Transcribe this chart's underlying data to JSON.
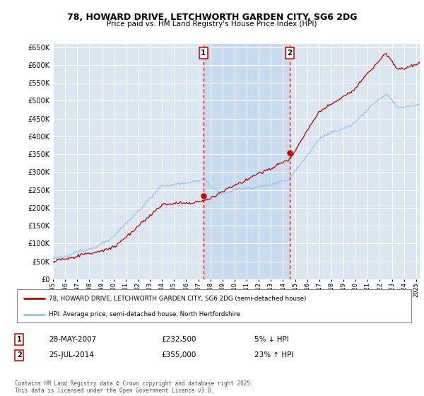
{
  "title": "78, HOWARD DRIVE, LETCHWORTH GARDEN CITY, SG6 2DG",
  "subtitle": "Price paid vs. HM Land Registry's House Price Index (HPI)",
  "legend_line1": "78, HOWARD DRIVE, LETCHWORTH GARDEN CITY, SG6 2DG (semi-detached house)",
  "legend_line2": "HPI: Average price, semi-detached house, North Hertfordshire",
  "footer": "Contains HM Land Registry data © Crown copyright and database right 2025.\nThis data is licensed under the Open Government Licence v3.0.",
  "transaction1_label": "1",
  "transaction1_date": "28-MAY-2007",
  "transaction1_price": "£232,500",
  "transaction1_hpi": "5% ↓ HPI",
  "transaction2_label": "2",
  "transaction2_date": "25-JUL-2014",
  "transaction2_price": "£355,000",
  "transaction2_hpi": "23% ↑ HPI",
  "plot_bg_color": "#dce6f1",
  "shade_color": "#c5d9f0",
  "red_color": "#c00000",
  "blue_color": "#9dc3e6",
  "vline_color": "#cc0000",
  "marker1_x": 2007.42,
  "marker2_x": 2014.55,
  "sale1_price": 232500,
  "sale2_price": 355000,
  "ylim_min": 0,
  "ylim_max": 660000,
  "ytick_step": 50000,
  "xmin": 1995,
  "xmax": 2025.3
}
